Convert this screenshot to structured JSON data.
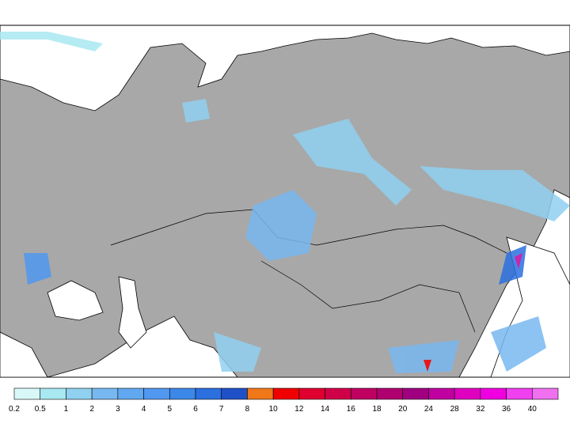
{
  "legend": {
    "levels": [
      0.2,
      0.5,
      1,
      2,
      3,
      4,
      5,
      6,
      7,
      8,
      10,
      12,
      14,
      16,
      18,
      20,
      24,
      28,
      32,
      36,
      40
    ],
    "colors": [
      "#d8f8f8",
      "#a8e8f0",
      "#90d0f0",
      "#78b8f0",
      "#60a8f0",
      "#5098f0",
      "#3c88e8",
      "#2c70e0",
      "#2050c8",
      "#f07818",
      "#f00000",
      "#e00030",
      "#d00048",
      "#c00060",
      "#b00070",
      "#a00080",
      "#c000a0",
      "#e000c0",
      "#f000e0",
      "#f040f0",
      "#f070f0"
    ]
  }
}
